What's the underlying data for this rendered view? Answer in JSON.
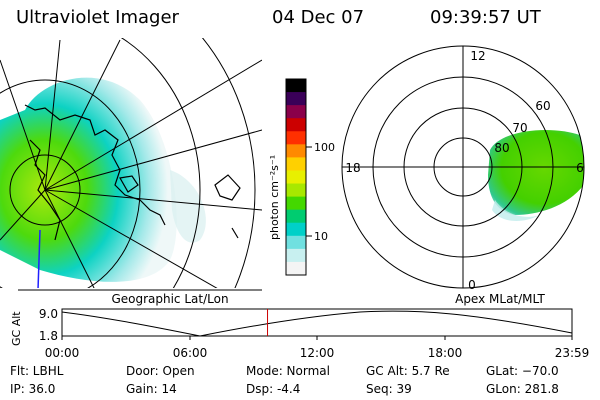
{
  "header": {
    "instrument": "Ultraviolet Imager",
    "date": "04 Dec 07",
    "time": "09:39:57 UT"
  },
  "colorbar": {
    "unit_label": "photon cm⁻²s⁻¹",
    "ticks": [
      "100",
      "10"
    ],
    "colors": [
      "#000000",
      "#3a0058",
      "#8a004a",
      "#cc0000",
      "#ff3000",
      "#ff8a00",
      "#ffd000",
      "#e8f000",
      "#a8e800",
      "#44d800",
      "#00cc70",
      "#00d0c8",
      "#70e0e0",
      "#c8f0f0",
      "#f4f4f4"
    ]
  },
  "map_left": {
    "label": "Geographic Lat/Lon"
  },
  "map_right": {
    "label": "Apex MLat/MLT",
    "hour_labels": [
      "12",
      "18",
      "6",
      "0"
    ],
    "lat_labels": [
      "60",
      "70",
      "80"
    ]
  },
  "timeline": {
    "ylabel": "GC Alt",
    "yticks": [
      "9.0",
      "1.8"
    ],
    "xticks": [
      "00:00",
      "06:00",
      "12:00",
      "18:00",
      "23:59"
    ],
    "current_time_fraction": 0.403
  },
  "status": {
    "flt": "Flt: LBHL",
    "ip": "IP: 36.0",
    "door": "Door: Open",
    "gain": "Gain: 14",
    "mode": "Mode: Normal",
    "dsp": "Dsp:    -4.4",
    "gcalt": "GC Alt: 5.7 Re",
    "seq": "Seq: 39",
    "glat": "GLat: −70.0",
    "glon": "GLon: 281.8"
  }
}
